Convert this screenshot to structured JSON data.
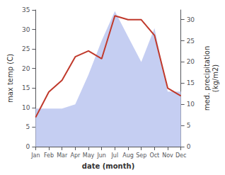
{
  "chart_data": {
    "type": "line",
    "categories": [
      "Jan",
      "Feb",
      "Mar",
      "Apr",
      "May",
      "Jun",
      "Jul",
      "Aug",
      "Sep",
      "Oct",
      "Nov",
      "Dec"
    ],
    "xlabel": "date (month)",
    "ylabel": "max temp (C)",
    "y2label": "med. precipitation\n(kg/m2)",
    "series": [
      {
        "type": "area",
        "color": "#c5cef2",
        "axis": "y2",
        "values": [
          9,
          9,
          9,
          10,
          17,
          25,
          32,
          26,
          20,
          28,
          13,
          13
        ]
      },
      {
        "type": "line",
        "color": "#c0392b",
        "values": [
          7.5,
          14,
          17,
          23,
          24.5,
          22.5,
          33.5,
          32.5,
          32.5,
          28.5,
          15,
          13
        ]
      }
    ],
    "ylim": [
      0,
      35
    ],
    "yticks": [
      0,
      5,
      10,
      15,
      20,
      25,
      30,
      35
    ],
    "y2lim": [
      0,
      32.3
    ],
    "y2ticks": [
      0,
      5,
      10,
      15,
      20,
      25,
      30
    ],
    "grid": false
  }
}
